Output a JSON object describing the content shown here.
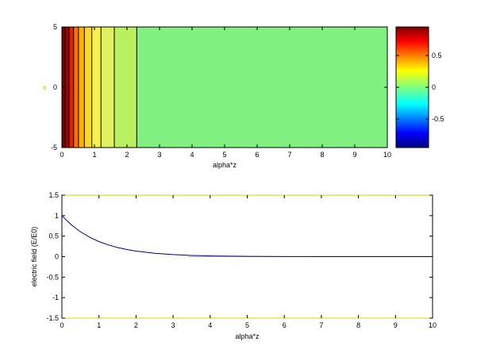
{
  "chart_data": [
    {
      "type": "heatmap",
      "title": "",
      "xlabel": "alpha*z",
      "ylabel": "x",
      "xlim": [
        0,
        10
      ],
      "ylim": [
        -5,
        5
      ],
      "x_ticks": [
        0,
        1,
        2,
        3,
        4,
        5,
        6,
        7,
        8,
        9,
        10
      ],
      "y_ticks": [
        -5,
        0,
        5
      ],
      "field": "exp(-alpha*z), constant along x",
      "contour_bands": [
        {
          "z_start": 0.0,
          "z_end": 0.1,
          "value": 0.95,
          "color": "#7f0000"
        },
        {
          "z_start": 0.1,
          "z_end": 0.22,
          "value": 0.85,
          "color": "#a00000"
        },
        {
          "z_start": 0.22,
          "z_end": 0.36,
          "value": 0.75,
          "color": "#e02000"
        },
        {
          "z_start": 0.36,
          "z_end": 0.51,
          "value": 0.65,
          "color": "#ff7000"
        },
        {
          "z_start": 0.51,
          "z_end": 0.69,
          "value": 0.55,
          "color": "#ffb000"
        },
        {
          "z_start": 0.69,
          "z_end": 0.92,
          "value": 0.45,
          "color": "#ffd820"
        },
        {
          "z_start": 0.92,
          "z_end": 1.2,
          "value": 0.35,
          "color": "#f6f050"
        },
        {
          "z_start": 1.2,
          "z_end": 1.61,
          "value": 0.25,
          "color": "#e0f060"
        },
        {
          "z_start": 1.61,
          "z_end": 2.3,
          "value": 0.15,
          "color": "#b8f060"
        },
        {
          "z_start": 2.3,
          "z_end": 10.0,
          "value": 0.05,
          "color": "#80f080"
        }
      ],
      "colorbar": {
        "range": [
          -0.95,
          0.95
        ],
        "ticks": [
          0.5,
          0,
          -0.5
        ],
        "tick_labels": [
          "0.5",
          "0",
          "-0.5"
        ],
        "colormap": "jet"
      }
    },
    {
      "type": "line",
      "title": "",
      "xlabel": "alpha*z",
      "ylabel": "electric field (E/E0)",
      "xlim": [
        0,
        10
      ],
      "ylim": [
        -1.5,
        1.5
      ],
      "x_ticks": [
        0,
        1,
        2,
        3,
        4,
        5,
        6,
        7,
        8,
        9,
        10
      ],
      "y_ticks": [
        1.5,
        1,
        0.5,
        0,
        -0.5,
        -1,
        -1.5
      ],
      "series": [
        {
          "color": "#000080",
          "x": [
            0,
            0.25,
            0.5,
            0.75,
            1,
            1.25,
            1.5,
            1.75,
            2,
            2.5,
            3,
            3.5,
            4,
            5,
            6,
            7,
            8,
            9,
            10
          ],
          "y": [
            1.0,
            0.779,
            0.607,
            0.472,
            0.368,
            0.287,
            0.223,
            0.174,
            0.135,
            0.082,
            0.05,
            0.03,
            0.018,
            0.007,
            0.002,
            0.001,
            0.0,
            0.0,
            0.0
          ]
        }
      ]
    }
  ]
}
